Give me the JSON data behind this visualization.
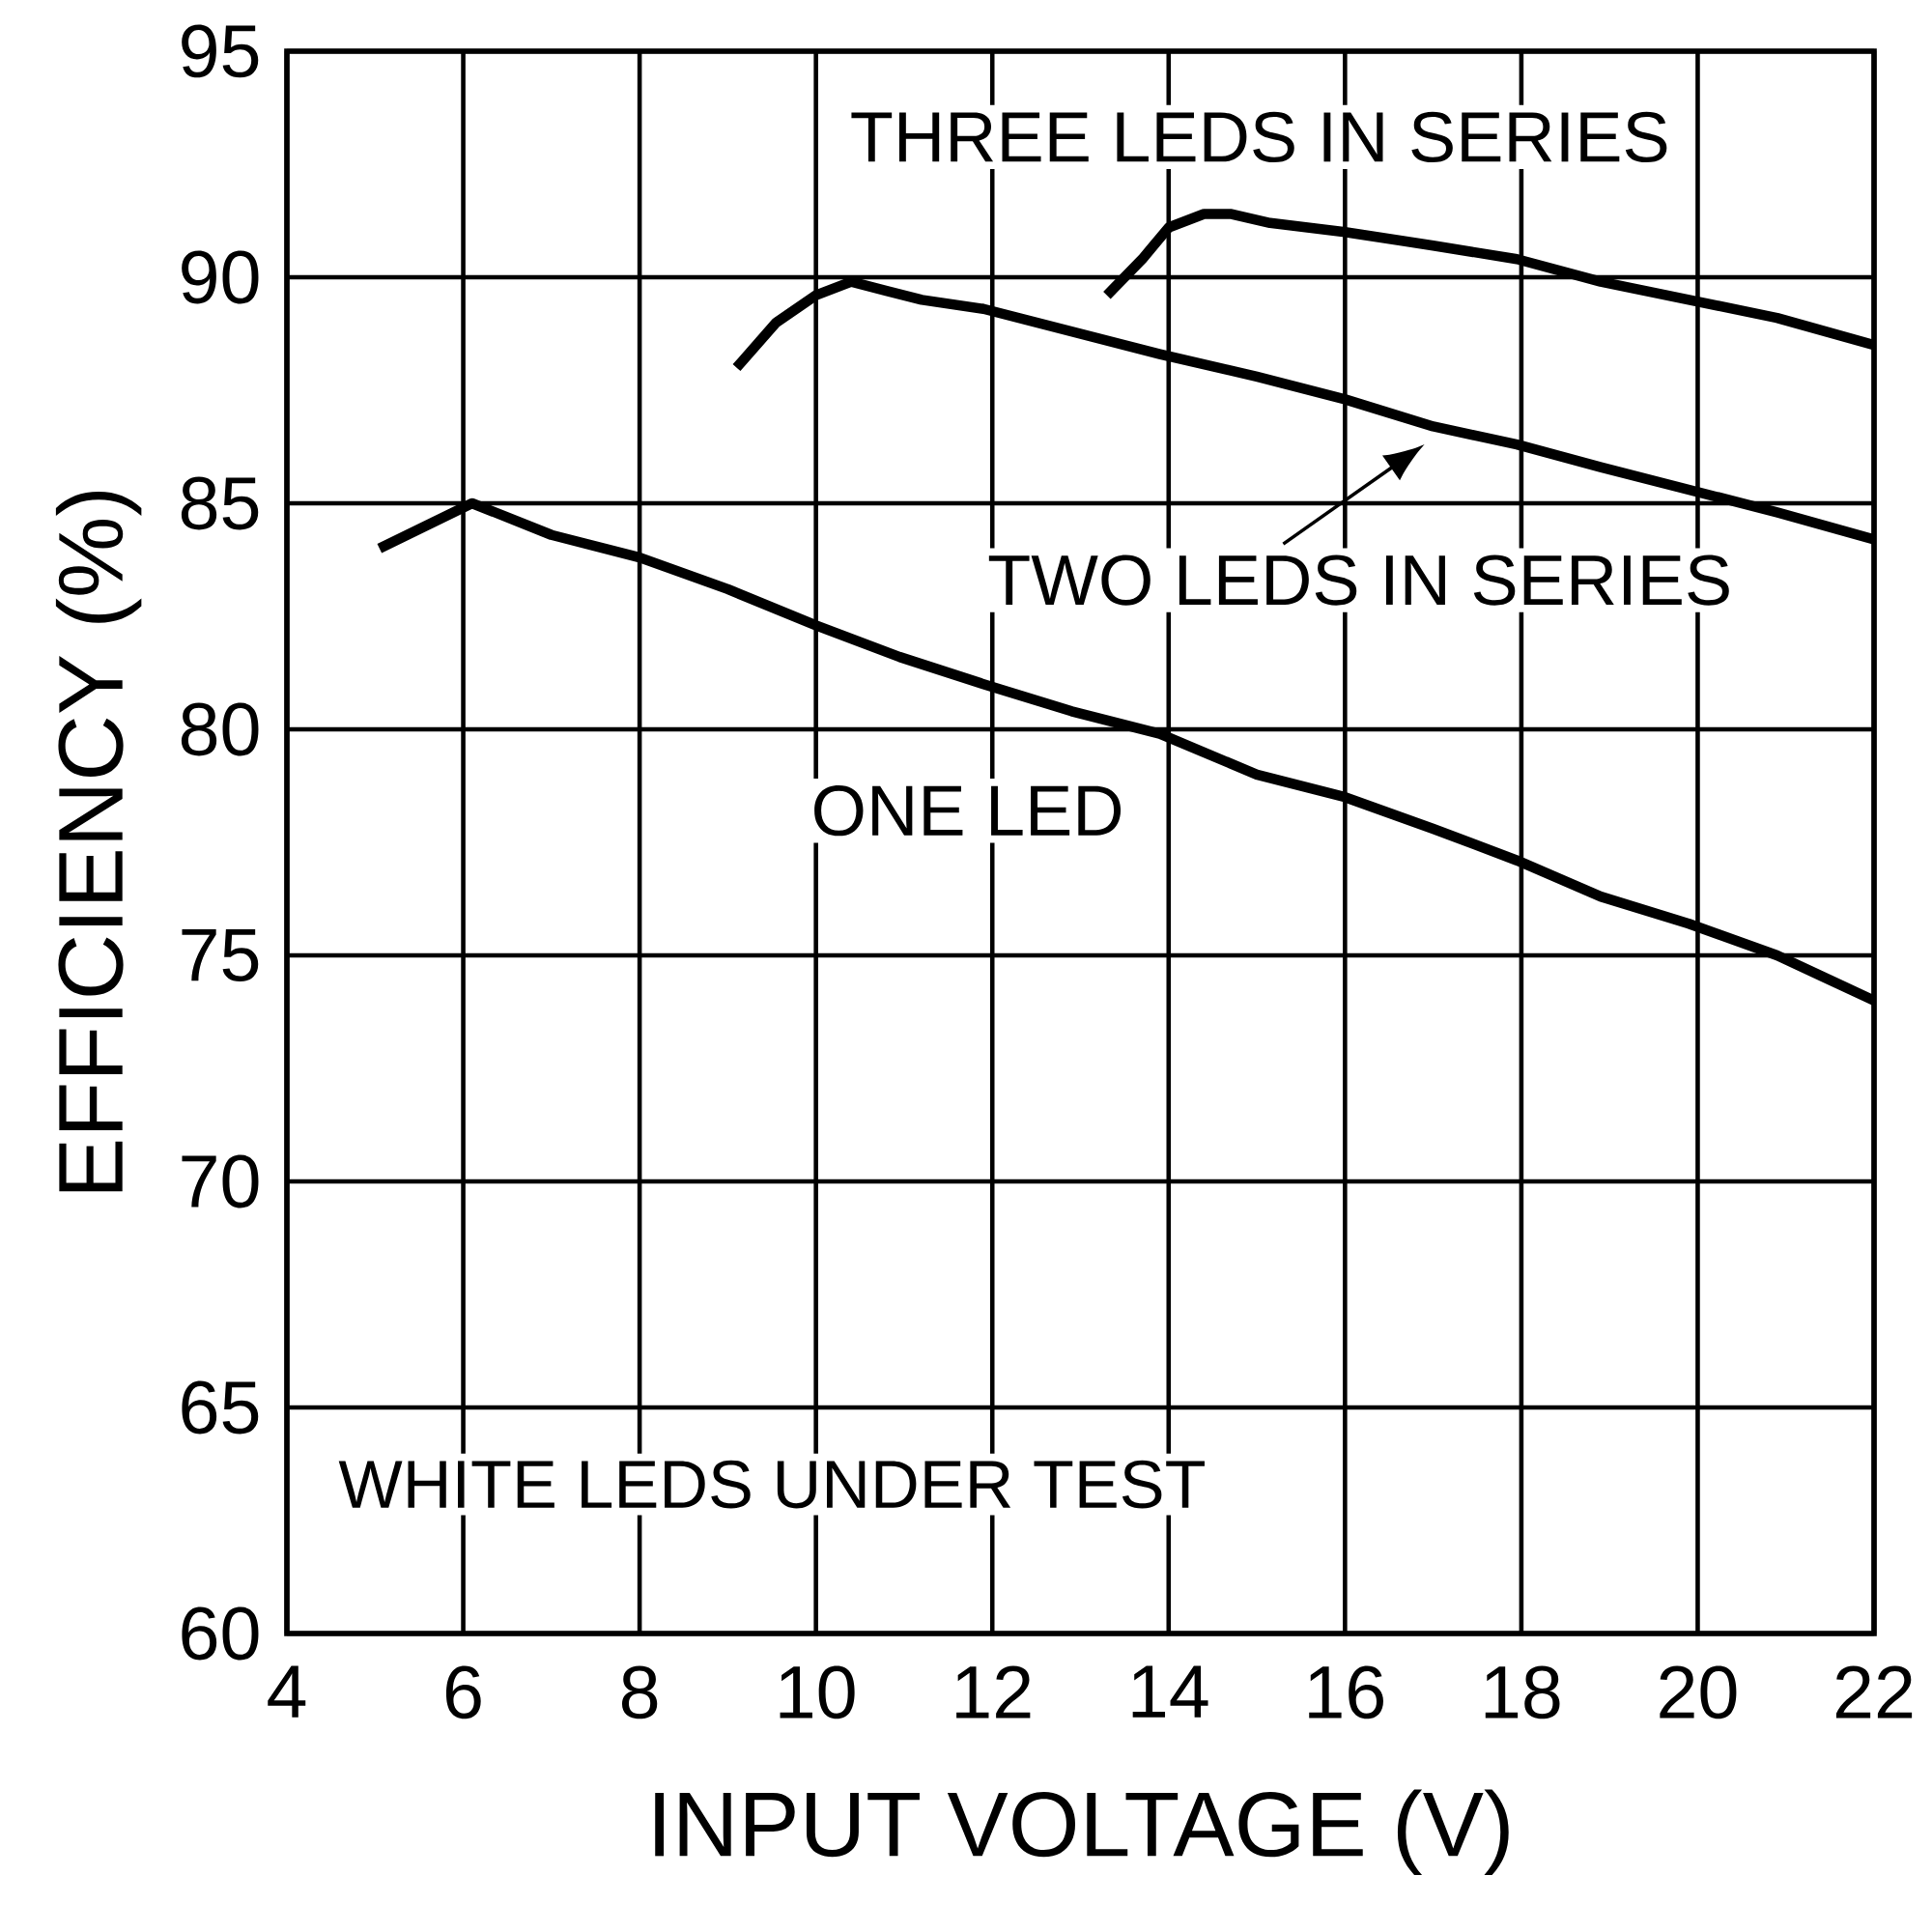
{
  "chart_data": {
    "type": "line",
    "xlabel": "INPUT VOLTAGE (V)",
    "ylabel": "EFFICIENCY (%)",
    "xlim": [
      4,
      22
    ],
    "xticks": [
      4,
      6,
      8,
      10,
      12,
      14,
      16,
      18,
      20,
      22
    ],
    "ylim": [
      60,
      95
    ],
    "yticks": [
      60,
      65,
      70,
      75,
      80,
      85,
      90,
      95
    ],
    "grid": true,
    "marker": "none",
    "line_style": "solid",
    "series": [
      {
        "name": "ONE LED",
        "color": "#000000",
        "x": [
          5.05,
          6.1,
          7.0,
          8.0,
          9.0,
          10.0,
          10.95,
          11.9,
          12.9,
          13.9,
          15.0,
          16.0,
          17.0,
          17.95,
          18.9,
          19.9,
          20.9,
          22.0
        ],
        "values": [
          84.0,
          85.0,
          84.3,
          83.8,
          83.1,
          82.3,
          81.6,
          81.0,
          80.4,
          79.9,
          79.0,
          78.5,
          77.8,
          77.1,
          76.3,
          75.7,
          75.0,
          74.0
        ]
      },
      {
        "name": "TWO LEDS IN SERIES",
        "color": "#000000",
        "x": [
          9.1,
          9.55,
          10.0,
          10.4,
          10.8,
          11.2,
          11.9,
          12.9,
          13.9,
          15.0,
          16.0,
          17.0,
          17.95,
          18.9,
          19.9,
          20.9,
          22.0
        ],
        "values": [
          88.0,
          89.0,
          89.6,
          89.9,
          89.7,
          89.5,
          89.3,
          88.8,
          88.3,
          87.8,
          87.3,
          86.7,
          86.3,
          85.8,
          85.3,
          84.8,
          84.2
        ]
      },
      {
        "name": "THREE LEDS IN SERIES",
        "color": "#000000",
        "x": [
          13.3,
          13.7,
          14.0,
          14.4,
          14.7,
          15.15,
          16.0,
          17.0,
          17.95,
          18.9,
          19.9,
          20.9,
          22.0
        ],
        "values": [
          89.6,
          90.4,
          91.1,
          91.4,
          91.4,
          91.2,
          91.0,
          90.7,
          90.4,
          89.9,
          89.5,
          89.1,
          88.5
        ]
      }
    ],
    "annotations": [
      "WHITE LEDS UNDER TEST"
    ]
  }
}
